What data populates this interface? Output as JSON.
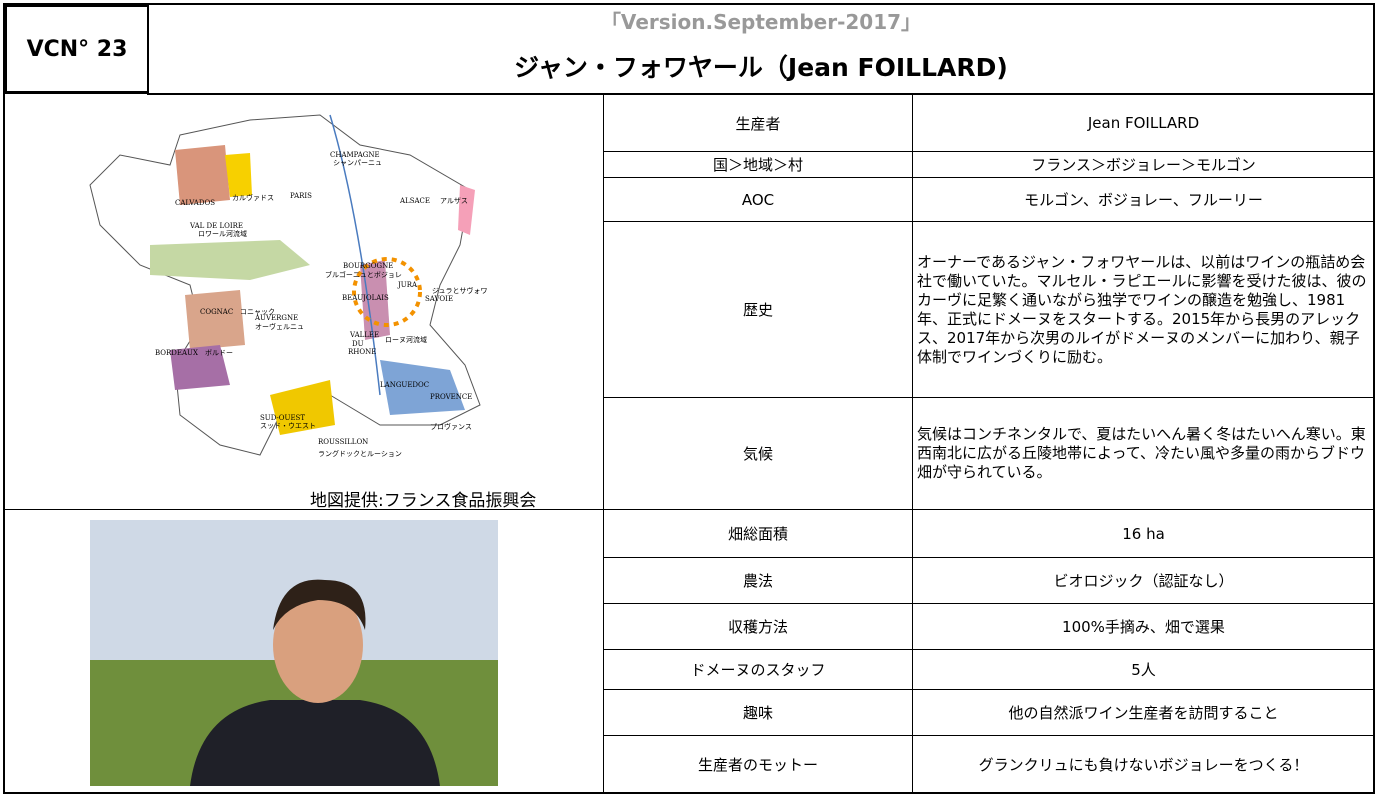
{
  "header": {
    "code": "VCN° 23",
    "version": "「Version.September-2017」",
    "title": "ジャン・フォワヤール（Jean FOILLARD)"
  },
  "map": {
    "caption": "地図提供:フランス食品振興会",
    "labels": [
      "CHAMPAGNE",
      "シャンパーニュ",
      "CALVADOS",
      "カルヴァドス",
      "PARIS",
      "ALSACE",
      "アルザス",
      "VAL DE LOIRE",
      "ロワール河流域",
      "BOURGOGNE",
      "ブルゴーニュとボジョレ",
      "JURA",
      "ジュラとサヴォワ",
      "SAVOIE",
      "BEAUJOLAIS",
      "COGNAC",
      "コニャック",
      "AUVERGNE",
      "オーヴェルニュ",
      "VALLEE",
      "DU",
      "RHONE",
      "ローヌ河流域",
      "BORDEAUX",
      "ボルドー",
      "LANGUEDOC",
      "PROVENCE",
      "プロヴァンス",
      "SUD-OUEST",
      "スッド・ウエスト",
      "ROUSSILLON",
      "ラングドックとルーション"
    ]
  },
  "profile": {
    "rows": [
      [
        "生産者",
        "Jean FOILLARD"
      ],
      [
        "国＞地域＞村",
        "フランス＞ボジョレー＞モルゴン"
      ],
      [
        "AOC",
        "モルゴン、ボジョレー、フルーリー"
      ],
      [
        "歴史",
        "オーナーであるジャン・フォワヤールは、以前はワインの瓶詰め会社で働いていた。マルセル・ラピエールに影響を受けた彼は、彼のカーヴに足繁く通いながら独学でワインの醸造を勉強し、1981年、正式にドメーヌをスタートする。2015年から長男のアレックス、2017年から次男のルイがドメーヌのメンバーに加わり、親子体制でワインづくりに励む。"
      ],
      [
        "気候",
        "気候はコンチネンタルで、夏はたいへん暑く冬はたいへん寒い。東西南北に広がる丘陵地帯によって、冷たい風や多量の雨からブドウ畑が守られている。"
      ],
      [
        "畑総面積",
        "16 ha"
      ],
      [
        "農法",
        "ビオロジック（認証なし）"
      ],
      [
        "収穫方法",
        "100%手摘み、畑で選果"
      ],
      [
        "ドメーヌのスタッフ",
        "5人"
      ],
      [
        "趣味",
        "他の自然派ワイン生産者を訪問すること"
      ],
      [
        "生産者のモットー",
        "グランクリュにも負けないボジョレーをつくる！"
      ]
    ]
  }
}
